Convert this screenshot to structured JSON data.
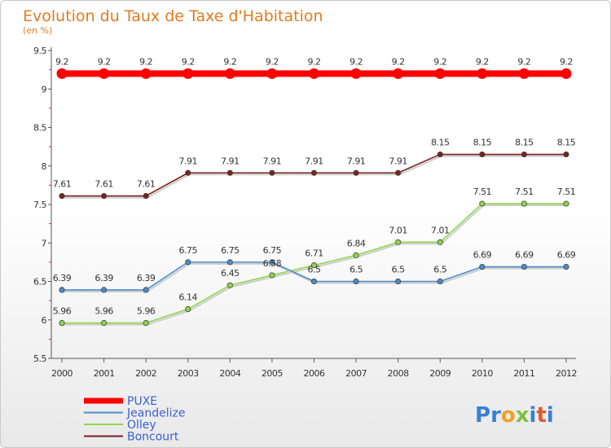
{
  "chart_data": {
    "type": "line",
    "title": "Evolution du Taux de Taxe d'Habitation",
    "subtitle": "(en %)",
    "xlabel": "",
    "ylabel": "",
    "x": [
      "2000",
      "2001",
      "2002",
      "2003",
      "2004",
      "2005",
      "2006",
      "2007",
      "2008",
      "2009",
      "2010",
      "2011",
      "2012"
    ],
    "ylim": [
      5.5,
      9.5
    ],
    "yticks": [
      "5.5",
      "6",
      "6.5",
      "7",
      "7.5",
      "8",
      "8.5",
      "9",
      "9.5"
    ],
    "grid": false,
    "legend_position": "bottom-left",
    "series": [
      {
        "name": "PUXE",
        "color": "#ff0000",
        "values": [
          9.2,
          9.2,
          9.2,
          9.2,
          9.2,
          9.2,
          9.2,
          9.2,
          9.2,
          9.2,
          9.2,
          9.2,
          9.2
        ],
        "labels": [
          "9.2",
          "9.2",
          "9.2",
          "9.2",
          "9.2",
          "9.2",
          "9.2",
          "9.2",
          "9.2",
          "9.2",
          "9.2",
          "9.2",
          "9.2"
        ]
      },
      {
        "name": "Jeandelize",
        "color": "#4a8cc9",
        "values": [
          6.39,
          6.39,
          6.39,
          6.75,
          6.75,
          6.75,
          6.5,
          6.5,
          6.5,
          6.5,
          6.69,
          6.69,
          6.69
        ],
        "labels": [
          "6.39",
          "6.39",
          "6.39",
          "6.75",
          "6.75",
          "6.75",
          "6.5",
          "6.5",
          "6.5",
          "6.5",
          "6.69",
          "6.69",
          "6.69"
        ]
      },
      {
        "name": "Olley",
        "color": "#8fd44a",
        "values": [
          5.96,
          5.96,
          5.96,
          6.14,
          6.45,
          6.58,
          6.71,
          6.84,
          7.01,
          7.01,
          7.51,
          7.51,
          7.51
        ],
        "labels": [
          "5.96",
          "5.96",
          "5.96",
          "6.14",
          "6.45",
          "6.58",
          "6.71",
          "6.84",
          "7.01",
          "7.01",
          "7.51",
          "7.51",
          "7.51"
        ]
      },
      {
        "name": "Boncourt",
        "color": "#7a2020",
        "values": [
          7.61,
          7.61,
          7.61,
          7.91,
          7.91,
          7.91,
          7.91,
          7.91,
          7.91,
          8.15,
          8.15,
          8.15,
          8.15
        ],
        "labels": [
          "7.61",
          "7.61",
          "7.61",
          "7.91",
          "7.91",
          "7.91",
          "7.91",
          "7.91",
          "7.91",
          "8.15",
          "8.15",
          "8.15",
          "8.15"
        ]
      }
    ]
  },
  "logo": {
    "text": "Proxiti",
    "letters": [
      "P",
      "r",
      "o",
      "x",
      "i",
      "t",
      "i"
    ],
    "colors": [
      "#3a7fd5",
      "#3a7fd5",
      "#f0a020",
      "#7cc142",
      "#3a7fd5",
      "#e05a2a",
      "#3a7fd5"
    ]
  }
}
